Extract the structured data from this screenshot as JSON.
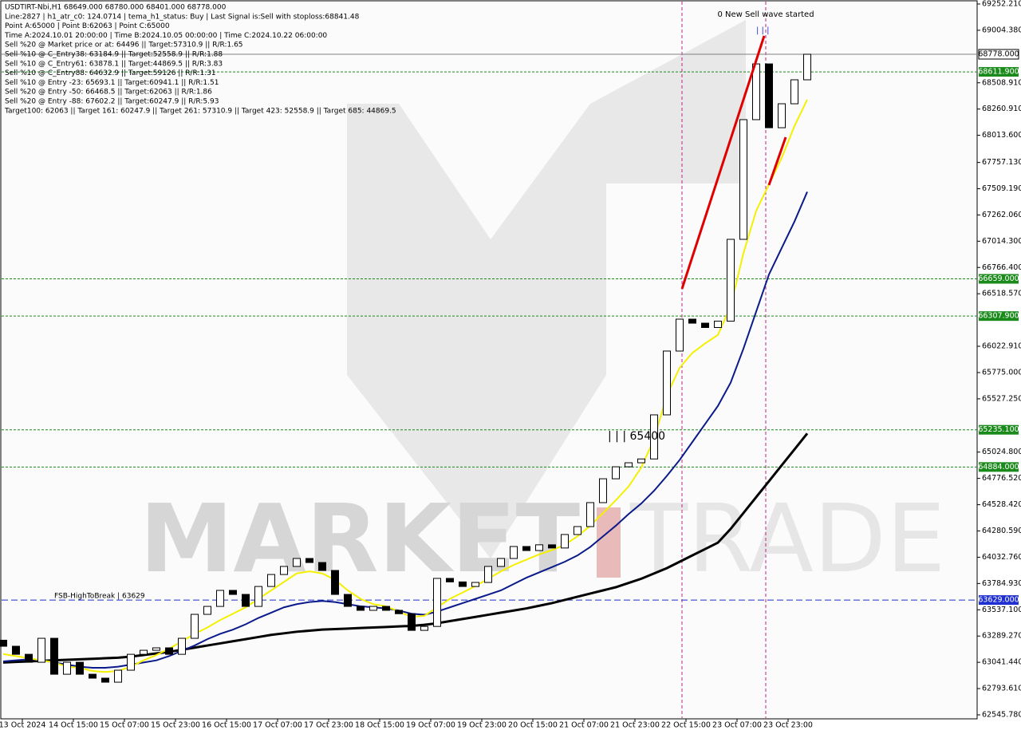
{
  "chart_data": {
    "type": "candlestick",
    "info_lines": [
      "USDTIRT-Nbi,H1  68649.000 68780.000 68401.000 68778.000",
      "Line:2827 | h1_atr_c0: 124.0714 | tema_h1_status: Buy | Last Signal is:Sell with stoploss:68841.48",
      "Point A:65000 | Point B:62063 | Point C:65000",
      "Time A:2024.10.01 20:00:00 | Time B:2024.10.05 00:00:00 | Time C:2024.10.22 06:00:00",
      "Sell %20 @ Market price or at: 64496 || Target:57310.9 || R/R:1.65",
      "Sell %10 @ C_Entry38: 63184.9 || Target:52558.9 || R/R:1.88",
      "Sell %10 @ C_Entry61: 63878.1 || Target:44869.5 || R/R:3.83",
      "Sell %10 @ C_Entry88: 64632.9 || Target:59126 || R/R:1.31",
      "Sell %10 @ Entry -23: 65693.1 || Target:60941.1 || R/R:1.51",
      "Sell %20 @ Entry -50: 66468.5 || Target:62063 || R/R:1.86",
      "Sell %20 @ Entry -88: 67602.2 || Target:60247.9 || R/R:5.93",
      "Target100: 62063 || Target 161: 60247.9 || Target 261: 57310.9 || Target 423: 52558.9 || Target 685: 44869.5"
    ],
    "annotations": [
      "0 New Sell wave started",
      "| | |",
      "| | | 65400"
    ],
    "watermark": {
      "left": "MARKET",
      "right": "TRADE"
    },
    "categories": [
      "13 Oct 2024",
      "14 Oct 15:00",
      "15 Oct 07:00",
      "15 Oct 23:00",
      "16 Oct 15:00",
      "17 Oct 07:00",
      "17 Oct 23:00",
      "18 Oct 15:00",
      "19 Oct 07:00",
      "19 Oct 23:00",
      "20 Oct 15:00",
      "21 Oct 07:00",
      "21 Oct 23:00",
      "22 Oct 15:00",
      "23 Oct 07:00",
      "23 Oct 23:00"
    ],
    "ylim": [
      62545.78,
      69252.21
    ],
    "yticks": [
      {
        "value": 69252.21,
        "label": "69252.210"
      },
      {
        "value": 69004.38,
        "label": "69004.380"
      },
      {
        "value": 68508.91,
        "label": "68508.910"
      },
      {
        "value": 68260.91,
        "label": "68260.910"
      },
      {
        "value": 68013.6,
        "label": "68013.600"
      },
      {
        "value": 67757.13,
        "label": "67757.130"
      },
      {
        "value": 67509.19,
        "label": "67509.190"
      },
      {
        "value": 67262.06,
        "label": "67262.060"
      },
      {
        "value": 67014.3,
        "label": "67014.300"
      },
      {
        "value": 66766.4,
        "label": "66766.400"
      },
      {
        "value": 66518.57,
        "label": "66518.570"
      },
      {
        "value": 66022.91,
        "label": "66022.910"
      },
      {
        "value": 65775,
        "label": "65775.000"
      },
      {
        "value": 65527.25,
        "label": "65527.250"
      },
      {
        "value": 65024.8,
        "label": "65024.800"
      },
      {
        "value": 64776.52,
        "label": "64776.520"
      },
      {
        "value": 64528.42,
        "label": "64528.420"
      },
      {
        "value": 64280.59,
        "label": "64280.590"
      },
      {
        "value": 64032.76,
        "label": "64032.760"
      },
      {
        "value": 63784.93,
        "label": "63784.930"
      },
      {
        "value": 63537.1,
        "label": "63537.100"
      },
      {
        "value": 63289.27,
        "label": "63289.270"
      },
      {
        "value": 63041.44,
        "label": "63041.440"
      },
      {
        "value": 62793.61,
        "label": "62793.610"
      },
      {
        "value": 62545.78,
        "label": "62545.780"
      }
    ],
    "levels": [
      {
        "value": 68778,
        "label": "68778.000",
        "color": "#808080"
      },
      {
        "value": 68611.9,
        "label": "68611.900",
        "color": "#1a8a1a"
      },
      {
        "value": 66659,
        "label": "66659.000",
        "color": "#1a8a1a"
      },
      {
        "value": 66307.9,
        "label": "66307.900",
        "color": "#1a8a1a"
      },
      {
        "value": 65235.1,
        "label": "65235.100",
        "color": "#1a8a1a"
      },
      {
        "value": 64884,
        "label": "64884.000",
        "color": "#1a8a1a"
      },
      {
        "value": 63629,
        "label": "63629.000",
        "color": "#1f2fd0",
        "name": "FSB-HighToBreak | 63629"
      }
    ],
    "up_color": "#ffffff",
    "down_color": "#000000",
    "candles": {
      "open": [
        63250,
        63193,
        63117,
        63042,
        63268,
        62929,
        63042,
        62929,
        62892,
        62854,
        62967,
        63117,
        63155,
        63178,
        63117,
        63268,
        63494,
        63569,
        63720,
        63682,
        63569,
        63757,
        63870,
        63946,
        64021,
        63983,
        63908,
        63682,
        63569,
        63532,
        63569,
        63532,
        63500,
        63343,
        63380,
        63833,
        63800,
        63757,
        63795,
        63946,
        64021,
        64134,
        64096,
        64150,
        64120,
        64247,
        64322,
        64548,
        64773,
        64886,
        64924,
        64960,
        65376,
        65978,
        66279,
        66241,
        66200,
        66260,
        67032,
        68161,
        68687,
        68085,
        68311,
        68537
      ],
      "close": [
        63193,
        63117,
        63042,
        63268,
        62929,
        63042,
        62929,
        62892,
        62854,
        62967,
        63117,
        63155,
        63178,
        63117,
        63268,
        63494,
        63569,
        63720,
        63682,
        63569,
        63757,
        63870,
        63946,
        64021,
        63983,
        63908,
        63682,
        63569,
        63532,
        63569,
        63532,
        63500,
        63343,
        63380,
        63833,
        63800,
        63757,
        63795,
        63946,
        64021,
        64134,
        64096,
        64150,
        64120,
        64247,
        64322,
        64548,
        64773,
        64886,
        64924,
        64960,
        65376,
        65978,
        66279,
        66241,
        66200,
        66260,
        67032,
        68161,
        68687,
        68085,
        68311,
        68537,
        68778
      ]
    },
    "lines": [
      {
        "color": "#000000",
        "width": 3,
        "values": [
          63040,
          63045,
          63050,
          63055,
          63060,
          63065,
          63070,
          63075,
          63080,
          63085,
          63095,
          63110,
          63125,
          63140,
          63160,
          63180,
          63200,
          63220,
          63240,
          63260,
          63280,
          63300,
          63315,
          63330,
          63340,
          63350,
          63355,
          63360,
          63365,
          63370,
          63375,
          63380,
          63385,
          63395,
          63410,
          63430,
          63450,
          63470,
          63490,
          63510,
          63530,
          63550,
          63575,
          63600,
          63630,
          63660,
          63690,
          63720,
          63750,
          63790,
          63830,
          63880,
          63930,
          63990,
          64050,
          64110,
          64170,
          64300,
          64450,
          64600,
          64750,
          64900,
          65050,
          65200
        ]
      },
      {
        "color": "#0a1a8a",
        "width": 2,
        "values": [
          63050,
          63060,
          63070,
          63060,
          63040,
          63020,
          63000,
          62990,
          62990,
          63000,
          63020,
          63040,
          63060,
          63100,
          63150,
          63200,
          63260,
          63310,
          63350,
          63400,
          63460,
          63510,
          63560,
          63590,
          63610,
          63620,
          63610,
          63590,
          63570,
          63560,
          63550,
          63530,
          63500,
          63490,
          63520,
          63560,
          63600,
          63640,
          63680,
          63720,
          63780,
          63840,
          63890,
          63940,
          63990,
          64050,
          64130,
          64230,
          64330,
          64440,
          64540,
          64660,
          64800,
          64950,
          65120,
          65290,
          65460,
          65680,
          66000,
          66350,
          66700,
          66950,
          67200,
          67480
        ]
      },
      {
        "color": "#f5f000",
        "width": 2,
        "values": [
          63120,
          63100,
          63080,
          63060,
          63040,
          63000,
          62990,
          62960,
          62950,
          62960,
          63000,
          63060,
          63110,
          63170,
          63240,
          63310,
          63370,
          63440,
          63500,
          63560,
          63640,
          63720,
          63800,
          63880,
          63900,
          63880,
          63820,
          63720,
          63640,
          63590,
          63570,
          63520,
          63470,
          63480,
          63560,
          63640,
          63700,
          63760,
          63830,
          63900,
          63960,
          64010,
          64060,
          64100,
          64150,
          64230,
          64330,
          64450,
          64570,
          64700,
          64880,
          65150,
          65560,
          65820,
          65960,
          66050,
          66130,
          66400,
          66900,
          67300,
          67550,
          67800,
          68100,
          68350
        ]
      }
    ]
  }
}
